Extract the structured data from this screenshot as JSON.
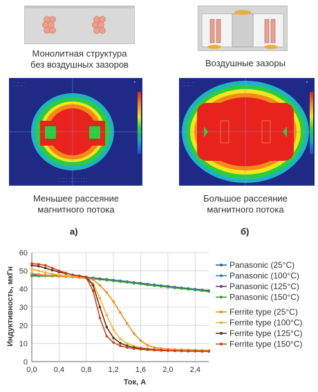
{
  "top": {
    "left_caption_1": "Монолитная структура",
    "left_caption_2": "без воздушных зазоров",
    "right_caption": "Воздушные зазоры",
    "left_bottom_caption_1": "Меньшее рассеяние",
    "left_bottom_caption_2": "магнитного потока",
    "right_bottom_caption_1": "Большое рассеяние",
    "right_bottom_caption_2": "магнитного потока",
    "label_a": "а)",
    "label_b": "б)"
  },
  "colors": {
    "sim_background": "#1e2a86",
    "field_red": "#e8221c",
    "field_orange": "#f28a18",
    "field_yellow": "#f3e41e",
    "field_green": "#2ecc40",
    "field_cyan": "#1fb3c2",
    "gap_accent": "#e8b040",
    "winding": "#e8a090"
  },
  "chart_data": {
    "type": "line",
    "xlabel": "Ток, А",
    "ylabel": "Индуктивность, мкГн",
    "xlim": [
      0,
      2.6
    ],
    "ylim": [
      0,
      60
    ],
    "xticks": [
      "0,0",
      "0,4",
      "0,8",
      "1,2",
      "1,6",
      "2,0",
      "2,4"
    ],
    "yticks": [
      "0",
      "10",
      "20",
      "30",
      "40",
      "50",
      "60"
    ],
    "grid": true,
    "legend_position": "right",
    "series": [
      {
        "name": "Panasonic (25°C)",
        "color": "#2e5fa8",
        "x": [
          0,
          0.1,
          0.2,
          0.3,
          0.4,
          0.5,
          0.6,
          0.7,
          0.8,
          0.9,
          1.0,
          1.1,
          1.2,
          1.3,
          1.4,
          1.5,
          1.6,
          1.7,
          1.8,
          1.9,
          2.0,
          2.1,
          2.2,
          2.3,
          2.4,
          2.5,
          2.6
        ],
        "y": [
          47.5,
          47.5,
          47.5,
          47.4,
          47.3,
          47.1,
          46.9,
          46.6,
          46.3,
          46,
          45.6,
          45.2,
          44.8,
          44.4,
          44,
          43.5,
          43.1,
          42.6,
          42.2,
          41.8,
          41.4,
          41,
          40.6,
          40.2,
          39.8,
          39.4,
          39
        ]
      },
      {
        "name": "Panasonic (100°C)",
        "color": "#1a8a9a",
        "x": [
          0,
          0.1,
          0.2,
          0.3,
          0.4,
          0.5,
          0.6,
          0.7,
          0.8,
          0.9,
          1.0,
          1.1,
          1.2,
          1.3,
          1.4,
          1.5,
          1.6,
          1.7,
          1.8,
          1.9,
          2.0,
          2.1,
          2.2,
          2.3,
          2.4,
          2.5,
          2.6
        ],
        "y": [
          47.7,
          47.7,
          47.6,
          47.5,
          47.4,
          47.2,
          47,
          46.7,
          46.4,
          46.1,
          45.7,
          45.3,
          44.9,
          44.5,
          44.1,
          43.6,
          43.2,
          42.7,
          42.3,
          41.9,
          41.5,
          41.1,
          40.7,
          40.3,
          39.9,
          39.5,
          39.1
        ]
      },
      {
        "name": "Panasonic (125°C)",
        "color": "#6a3a8a",
        "x": [
          0,
          0.1,
          0.2,
          0.3,
          0.4,
          0.5,
          0.6,
          0.7,
          0.8,
          0.9,
          1.0,
          1.1,
          1.2,
          1.3,
          1.4,
          1.5,
          1.6,
          1.7,
          1.8,
          1.9,
          2.0,
          2.1,
          2.2,
          2.3,
          2.4,
          2.5,
          2.6
        ],
        "y": [
          47.3,
          47.3,
          47.3,
          47.2,
          47.1,
          46.9,
          46.7,
          46.4,
          46.1,
          45.8,
          45.4,
          45,
          44.6,
          44.2,
          43.8,
          43.3,
          42.9,
          42.4,
          42,
          41.6,
          41.2,
          40.8,
          40.4,
          40,
          39.6,
          39.2,
          38.8
        ]
      },
      {
        "name": "Panasonic (150°C)",
        "color": "#3a9a3a",
        "x": [
          0,
          0.1,
          0.2,
          0.3,
          0.4,
          0.5,
          0.6,
          0.7,
          0.8,
          0.9,
          1.0,
          1.1,
          1.2,
          1.3,
          1.4,
          1.5,
          1.6,
          1.7,
          1.8,
          1.9,
          2.0,
          2.1,
          2.2,
          2.3,
          2.4,
          2.5,
          2.6
        ],
        "y": [
          47.1,
          47.1,
          47.1,
          47,
          46.9,
          46.7,
          46.5,
          46.2,
          45.9,
          45.6,
          45.2,
          44.8,
          44.4,
          44,
          43.6,
          43.1,
          42.7,
          42.2,
          41.8,
          41.4,
          41,
          40.6,
          40.2,
          39.8,
          39.4,
          39,
          38.6
        ]
      },
      {
        "name": "Ferrite type (25°C)",
        "color": "#f08a20",
        "x": [
          0,
          0.1,
          0.2,
          0.3,
          0.4,
          0.5,
          0.6,
          0.7,
          0.8,
          0.9,
          1.0,
          1.1,
          1.2,
          1.3,
          1.4,
          1.5,
          1.6,
          1.7,
          1.8,
          1.9,
          2.0,
          2.1,
          2.2,
          2.3,
          2.4,
          2.5,
          2.6
        ],
        "y": [
          48.5,
          48,
          47.5,
          47.2,
          46.9,
          46.7,
          46.5,
          46.2,
          46,
          45.2,
          42,
          38,
          33,
          27,
          21,
          15.5,
          11.5,
          9,
          7.8,
          7.2,
          6.9,
          6.7,
          6.6,
          6.5,
          6.4,
          6.3,
          6.2
        ]
      },
      {
        "name": "Ferrite type (100°C)",
        "color": "#f2b233",
        "x": [
          0,
          0.1,
          0.2,
          0.3,
          0.4,
          0.5,
          0.6,
          0.7,
          0.8,
          0.9,
          1.0,
          1.1,
          1.2,
          1.3,
          1.4,
          1.5,
          1.6,
          1.7,
          1.8,
          1.9,
          2.0,
          2.1,
          2.2,
          2.3,
          2.4,
          2.5,
          2.6
        ],
        "y": [
          51,
          50,
          49,
          48.3,
          47.7,
          47.2,
          46.8,
          46.5,
          46.2,
          43,
          35,
          25.5,
          17.5,
          12.5,
          10,
          8.6,
          7.8,
          7.2,
          6.9,
          6.6,
          6.4,
          6.3,
          6.2,
          6.1,
          6,
          5.9,
          5.9
        ]
      },
      {
        "name": "Ferrite type (125°C)",
        "color": "#5a3018",
        "x": [
          0,
          0.1,
          0.2,
          0.3,
          0.4,
          0.5,
          0.6,
          0.7,
          0.8,
          0.9,
          1.0,
          1.1,
          1.2,
          1.3,
          1.4,
          1.5,
          1.6,
          1.7,
          1.8,
          1.9,
          2.0,
          2.1,
          2.2,
          2.3,
          2.4,
          2.5,
          2.6
        ],
        "y": [
          53,
          52.5,
          51.5,
          50.3,
          49.3,
          48.5,
          47.8,
          47.2,
          46.6,
          42,
          30,
          19,
          13,
          10.2,
          8.7,
          7.8,
          7.2,
          6.8,
          6.5,
          6.3,
          6.1,
          6,
          5.9,
          5.8,
          5.8,
          5.7,
          5.7
        ]
      },
      {
        "name": "Ferrite type (150°C)",
        "color": "#c8401a",
        "x": [
          0,
          0.1,
          0.2,
          0.3,
          0.4,
          0.5,
          0.6,
          0.7,
          0.8,
          0.9,
          1.0,
          1.1,
          1.2,
          1.3,
          1.4,
          1.5,
          1.6,
          1.7,
          1.8,
          1.9,
          2.0,
          2.1,
          2.2,
          2.3,
          2.4,
          2.5,
          2.6
        ],
        "y": [
          54,
          53.6,
          53,
          51.5,
          50,
          48.8,
          47.8,
          47,
          46.3,
          39,
          24,
          14,
          10.5,
          8.7,
          7.8,
          7.2,
          6.8,
          6.5,
          6.3,
          6.1,
          6,
          5.9,
          5.8,
          5.7,
          5.7,
          5.6,
          5.6
        ]
      }
    ]
  }
}
